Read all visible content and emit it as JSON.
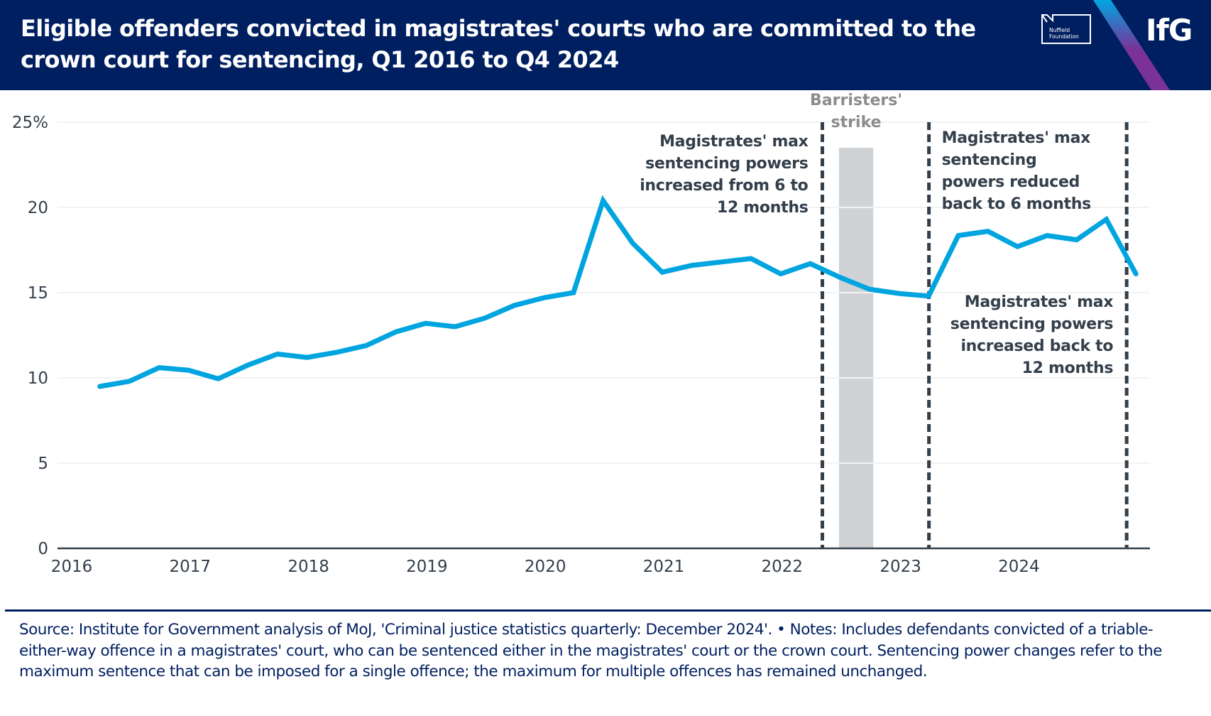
{
  "header": {
    "title": "Eligible offenders convicted in magistrates' courts who are committed to the crown court for sentencing, Q1 2016 to Q4 2024",
    "logos": {
      "nuffield_line1": "Nuffield",
      "nuffield_line2": "Foundation",
      "ifg": "IfG"
    }
  },
  "colors": {
    "header_bg": "#001f60",
    "line": "#00a5e0",
    "annotation_text": "#333f4b",
    "strike_band": "#d0d3d6",
    "strike_label": "#8c8c8c",
    "gridline": "#eeeeee",
    "axis": "#333f4b",
    "footer_text": "#001f60"
  },
  "chart_data": {
    "type": "line",
    "title": "Eligible offenders convicted in magistrates' courts who are committed to the crown court for sentencing, Q1 2016 to Q4 2024",
    "xlabel": "",
    "ylabel": "",
    "ylim": [
      0,
      25
    ],
    "xlim": [
      2016,
      2025
    ],
    "grid": true,
    "y_ticks": [
      0,
      5,
      10,
      15,
      20,
      25
    ],
    "y_tick_labels": [
      "0",
      "5",
      "10",
      "15",
      "20",
      "25%"
    ],
    "x_ticks": [
      2016,
      2017,
      2018,
      2019,
      2020,
      2021,
      2022,
      2023,
      2024
    ],
    "x_tick_labels": [
      "2016",
      "2017",
      "2018",
      "2019",
      "2020",
      "2021",
      "2022",
      "2023",
      "2024"
    ],
    "x": [
      "Q1 2016",
      "Q2 2016",
      "Q3 2016",
      "Q4 2016",
      "Q1 2017",
      "Q2 2017",
      "Q3 2017",
      "Q4 2017",
      "Q1 2018",
      "Q2 2018",
      "Q3 2018",
      "Q4 2018",
      "Q1 2019",
      "Q2 2019",
      "Q3 2019",
      "Q4 2019",
      "Q1 2020",
      "Q2 2020",
      "Q3 2020",
      "Q4 2020",
      "Q1 2021",
      "Q2 2021",
      "Q3 2021",
      "Q4 2021",
      "Q1 2022",
      "Q2 2022",
      "Q3 2022",
      "Q4 2022",
      "Q1 2023",
      "Q2 2023",
      "Q3 2023",
      "Q4 2023",
      "Q1 2024",
      "Q2 2024",
      "Q3 2024",
      "Q4 2024"
    ],
    "series": [
      {
        "name": "Share committed to crown court for sentencing (%)",
        "values": [
          9.5,
          9.8,
          10.6,
          10.45,
          9.95,
          10.75,
          11.4,
          11.2,
          11.5,
          11.9,
          12.7,
          13.2,
          13.0,
          13.5,
          14.25,
          14.7,
          15.0,
          20.4,
          17.9,
          16.2,
          16.6,
          16.8,
          17.0,
          16.1,
          16.7,
          15.9,
          15.2,
          14.95,
          14.8,
          18.35,
          18.6,
          17.7,
          18.35,
          18.1,
          19.3,
          16.1
        ]
      }
    ],
    "events": [
      {
        "name": "sentencing-increase-12",
        "year": 2022.34,
        "label_lines": [
          "Magistrates' max",
          "sentencing powers",
          "increased from 6 to",
          "12 months"
        ],
        "label_side": "left"
      },
      {
        "name": "sentencing-reduced-6",
        "year": 2023.24,
        "label_lines": [
          "Magistrates' max",
          "sentencing",
          "powers reduced",
          "back to 6 months"
        ],
        "label_side": "right"
      },
      {
        "name": "sentencing-increased-back-12",
        "year": 2024.91,
        "label_lines": [
          "Magistrates' max",
          "sentencing powers",
          "increased back to",
          "12 months"
        ],
        "label_side": "left"
      }
    ],
    "shaded_period": {
      "label_lines": [
        "Barristers'",
        "strike"
      ],
      "start": 2022.48,
      "end": 2022.77
    }
  },
  "footer": {
    "text": "Source: Institute for Government analysis of MoJ, 'Criminal justice statistics quarterly: December 2024'. • Notes: Includes defendants convicted of a triable-either-way offence in a magistrates' court, who can be sentenced either in the magistrates' court or the crown court. Sentencing power changes refer to the maximum sentence that can be imposed for a single offence; the maximum for multiple offences has remained unchanged."
  }
}
